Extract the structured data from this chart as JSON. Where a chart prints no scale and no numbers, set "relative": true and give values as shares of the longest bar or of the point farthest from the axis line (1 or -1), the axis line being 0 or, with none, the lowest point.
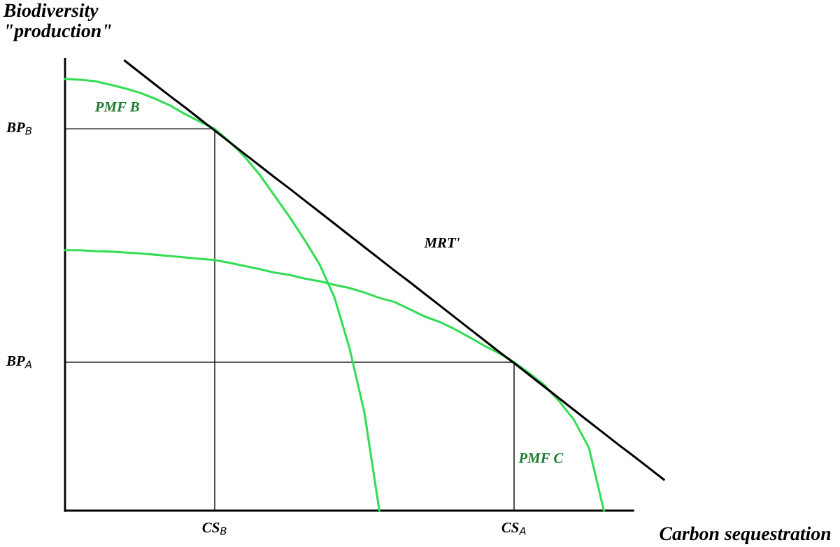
{
  "chart_data": {
    "type": "line",
    "relative": true,
    "xlabel": "Carbon sequestration",
    "ylabel": "Biodiversity\n\"production\"",
    "categories": [
      null,
      null,
      null,
      null,
      null,
      null,
      null,
      null,
      null,
      null,
      "CS$_{B}$",
      null,
      null,
      null,
      null,
      null,
      null,
      null,
      null,
      null,
      null,
      null,
      null,
      null,
      null,
      null,
      null,
      null,
      null,
      null,
      "CS$_{A}$",
      null,
      null,
      null,
      null,
      null,
      null,
      null,
      null,
      null,
      null
    ],
    "series": [
      {
        "name": "PMF B",
        "color": "#33dd55",
        "values": [
          0.96,
          0.958,
          0.955,
          0.947,
          0.939,
          0.929,
          0.916,
          0.901,
          0.882,
          0.865,
          0.849,
          0.82,
          0.787,
          0.747,
          0.7,
          0.653,
          0.602,
          0.548,
          0.474,
          0.362,
          0.218,
          0,
          null,
          null,
          null,
          null,
          null,
          null,
          null,
          null,
          null,
          null,
          null,
          null,
          null,
          null,
          null,
          null,
          null,
          null,
          null
        ]
      },
      {
        "name": "PMF C",
        "color": "#33dd55",
        "values": [
          0.579,
          0.579,
          0.577,
          0.576,
          0.574,
          0.572,
          0.569,
          0.566,
          0.563,
          0.56,
          0.557,
          0.551,
          0.544,
          0.537,
          0.529,
          0.524,
          0.516,
          0.51,
          0.502,
          0.495,
          0.485,
          0.473,
          0.464,
          0.448,
          0.432,
          0.42,
          0.404,
          0.386,
          0.367,
          0.35,
          0.33,
          0.306,
          0.28,
          0.244,
          0.202,
          0.14,
          0,
          null,
          null,
          null,
          null
        ]
      },
      {
        "name": "MRT'",
        "color": "#000000",
        "values": [
          null,
          null,
          null,
          null,
          1.0,
          0.974,
          0.948,
          0.922,
          0.897,
          0.871,
          0.845,
          0.819,
          0.793,
          0.767,
          0.741,
          0.716,
          0.69,
          0.664,
          0.638,
          0.612,
          0.586,
          0.56,
          0.534,
          0.509,
          0.483,
          0.457,
          0.431,
          0.405,
          0.379,
          0.353,
          0.328,
          0.302,
          0.276,
          0.25,
          0.224,
          0.198,
          0.172,
          0.146,
          0.121,
          0.095,
          0.069
        ]
      },
      {
        "color": "#000000",
        "values": [
          0.849,
          0.849,
          0.849,
          0.849,
          0.849,
          0.849,
          0.849,
          0.849,
          0.849,
          0.849,
          0.849,
          null,
          null,
          null,
          null,
          null,
          null,
          null,
          null,
          null,
          null,
          null,
          null,
          null,
          null,
          null,
          null,
          null,
          null,
          null,
          null,
          null,
          null,
          null,
          null,
          null,
          null,
          null,
          null,
          null,
          null
        ]
      },
      {
        "color": "#000000",
        "values": [
          0.33,
          0.33,
          0.33,
          0.33,
          0.33,
          0.33,
          0.33,
          0.33,
          0.33,
          0.33,
          0.33,
          0.33,
          0.33,
          0.33,
          0.33,
          0.33,
          0.33,
          0.33,
          0.33,
          0.33,
          0.33,
          0.33,
          0.33,
          0.33,
          0.33,
          0.33,
          0.33,
          0.33,
          0.33,
          0.33,
          0.33,
          null,
          null,
          null,
          null,
          null,
          null,
          null,
          null,
          null,
          null
        ]
      },
      {
        "color": "#000000",
        "x": [
          "CS$_{B}$",
          "CS$_{B}$"
        ],
        "values": [
          0,
          0.849
        ]
      },
      {
        "color": "#000000",
        "x": [
          "CS$_{A}$",
          "CS$_{A}$"
        ],
        "values": [
          0,
          0.33
        ]
      }
    ],
    "annotations": [
      "BP$_{B}$",
      "BP$_{A}$"
    ]
  }
}
